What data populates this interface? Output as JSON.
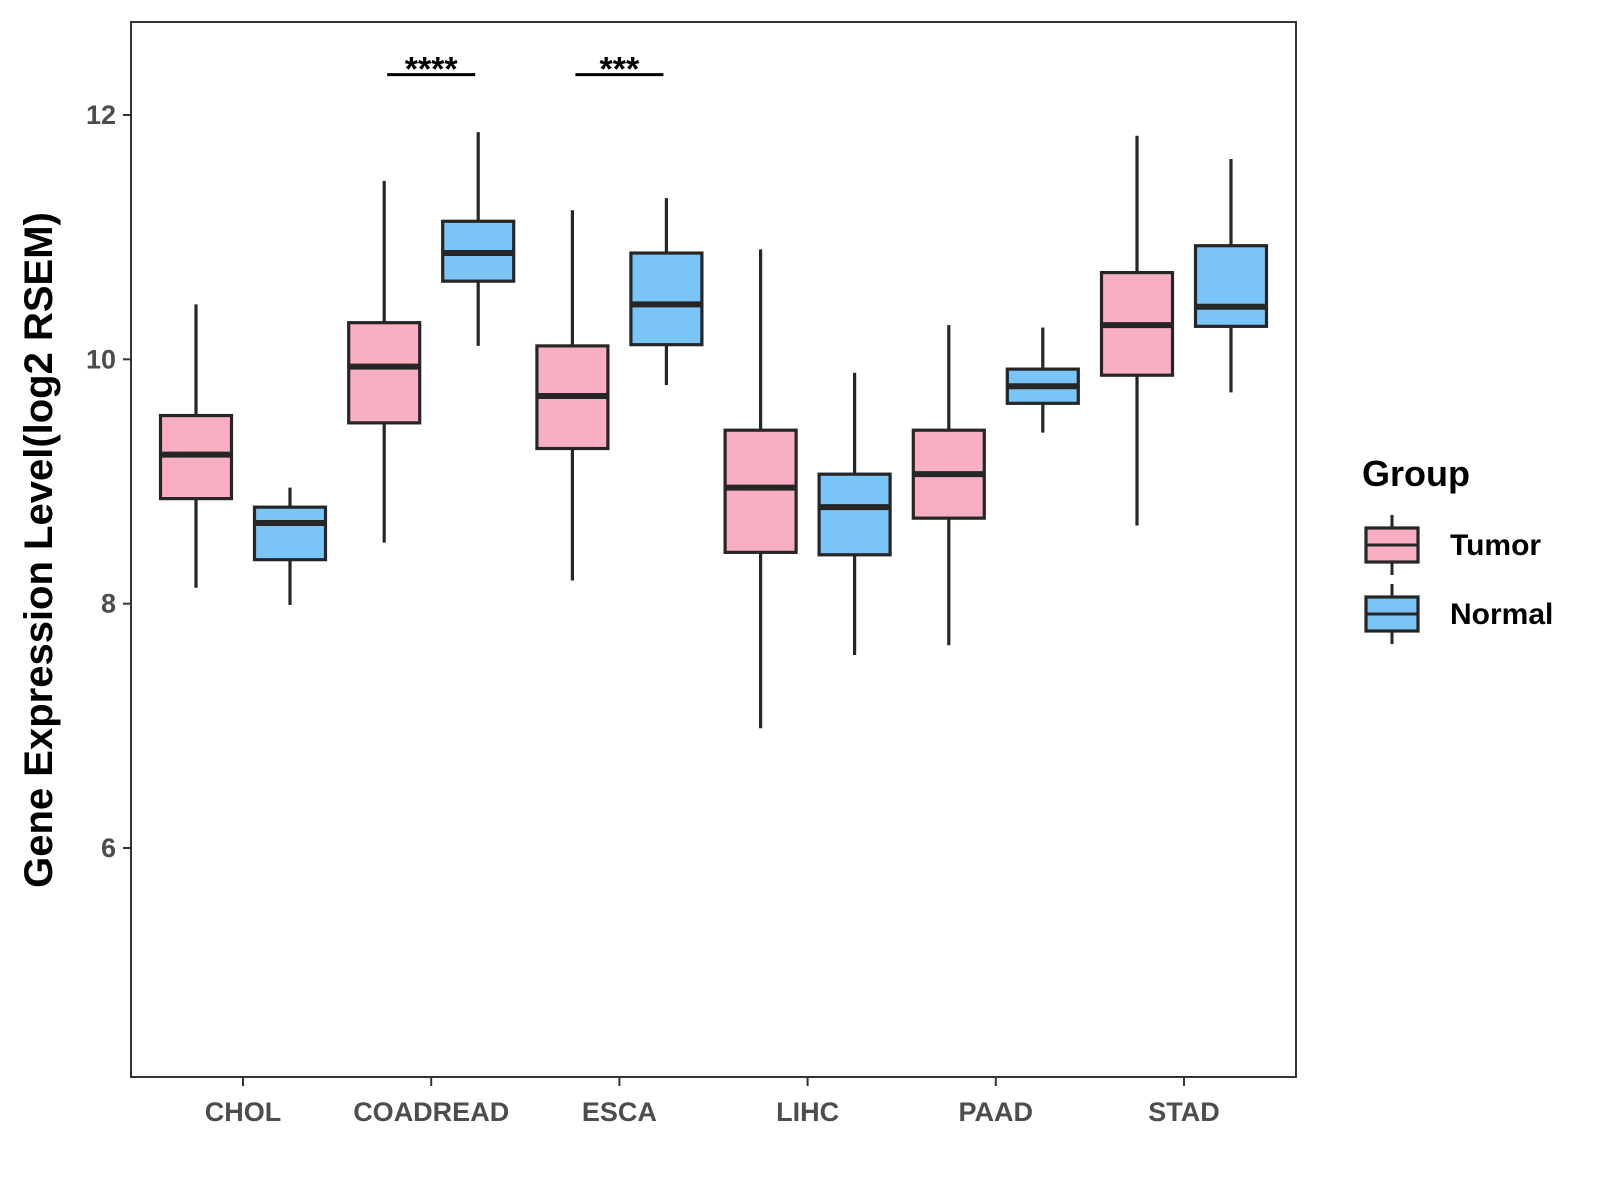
{
  "chart_data": {
    "type": "boxplot",
    "title": "",
    "xlabel": "",
    "ylabel": "Gene Expression Level(log2 RSEM)",
    "ylim": [
      4.2,
      12.8
    ],
    "yticks": [
      6,
      8,
      10,
      12
    ],
    "categories": [
      "CHOL",
      "COADREAD",
      "ESCA",
      "LIHC",
      "PAAD",
      "STAD"
    ],
    "legend": {
      "title": "Group",
      "position": "right"
    },
    "series": [
      {
        "name": "Tumor",
        "color": "#F9AFC1",
        "boxes": [
          {
            "min": 8.13,
            "q1": 8.86,
            "median": 9.22,
            "q3": 9.54,
            "max": 10.45
          },
          {
            "min": 8.5,
            "q1": 9.48,
            "median": 9.94,
            "q3": 10.3,
            "max": 11.46
          },
          {
            "min": 8.19,
            "q1": 9.27,
            "median": 9.7,
            "q3": 10.11,
            "max": 11.22
          },
          {
            "min": 6.98,
            "q1": 8.42,
            "median": 8.95,
            "q3": 9.42,
            "max": 10.9
          },
          {
            "min": 7.66,
            "q1": 8.7,
            "median": 9.06,
            "q3": 9.42,
            "max": 10.28
          },
          {
            "min": 8.64,
            "q1": 9.87,
            "median": 10.28,
            "q3": 10.71,
            "max": 11.83
          }
        ]
      },
      {
        "name": "Normal",
        "color": "#7BC4F8",
        "boxes": [
          {
            "min": 7.99,
            "q1": 8.36,
            "median": 8.66,
            "q3": 8.79,
            "max": 8.95
          },
          {
            "min": 10.11,
            "q1": 10.64,
            "median": 10.87,
            "q3": 11.13,
            "max": 11.86
          },
          {
            "min": 9.79,
            "q1": 10.12,
            "median": 10.45,
            "q3": 10.87,
            "max": 11.32
          },
          {
            "min": 7.58,
            "q1": 8.4,
            "median": 8.79,
            "q3": 9.06,
            "max": 9.89
          },
          {
            "min": 9.4,
            "q1": 9.64,
            "median": 9.78,
            "q3": 9.92,
            "max": 10.26
          },
          {
            "min": 9.73,
            "q1": 10.27,
            "median": 10.43,
            "q3": 10.93,
            "max": 11.64
          }
        ]
      }
    ],
    "significance": [
      {
        "category": "COADREAD",
        "label": "****",
        "y": 12.33
      },
      {
        "category": "ESCA",
        "label": "***",
        "y": 12.33
      }
    ]
  }
}
